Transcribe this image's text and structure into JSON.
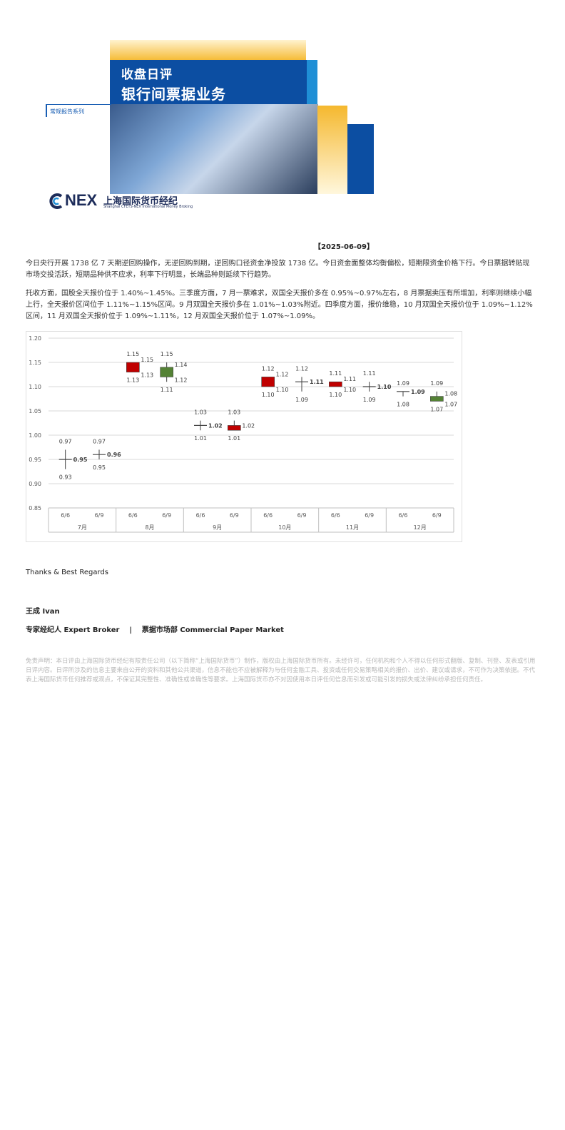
{
  "header": {
    "title_line1": "收盘日评",
    "title_line2": "银行间票据业务",
    "series_label": "常规报告系列",
    "logo_text": "NEX",
    "logo_cn": "上海国际货币经纪",
    "logo_en": "Shanghai CFETS-NEX International Money Broking",
    "colors": {
      "blue": "#0c4ea2",
      "yellow": "#f5b82e",
      "light_blue": "#1f8fd6"
    }
  },
  "report_date": "【2025-06-09】",
  "paragraphs": [
    "今日央行开展 1738 亿 7 天期逆回购操作，无逆回购到期，逆回购口径资金净投放 1738 亿。今日资金面整体均衡偏松，短期限资金价格下行。今日票据转贴现市场交投活跃，短期品种供不应求，利率下行明显，长端品种则延续下行趋势。",
    "托收方面，国股全天报价位于 1.40%~1.45%。三季度方面，7 月一票难求，双国全天报价多在 0.95%~0.97%左右，8 月票据卖压有所增加，利率则继续小幅上行，全天报价区间位于 1.11%~1.15%区间。9 月双国全天报价多在 1.01%~1.03%附近。四季度方面，报价维稳，10 月双国全天报价位于 1.09%~1.12%区间，11 月双国全天报价位于 1.09%~1.11%，12 月双国全天报价位于 1.07%~1.09%。"
  ],
  "chart_data": {
    "type": "candlestick",
    "ylim": [
      0.85,
      1.2
    ],
    "yticks": [
      "0.85",
      "0.90",
      "0.95",
      "1.00",
      "1.05",
      "1.10",
      "1.15",
      "1.20"
    ],
    "groups": [
      "7月",
      "8月",
      "9月",
      "10月",
      "11月",
      "12月"
    ],
    "categories": [
      "6/6",
      "6/9",
      "6/6",
      "6/9",
      "6/6",
      "6/9",
      "6/6",
      "6/9",
      "6/6",
      "6/9",
      "6/6",
      "6/9"
    ],
    "candles": [
      {
        "high": 0.97,
        "low": 0.93,
        "open": 0.95,
        "close": 0.95,
        "labels": [
          "0.97",
          "0.95",
          "0.93"
        ]
      },
      {
        "high": 0.97,
        "low": 0.95,
        "open": 0.96,
        "close": 0.96,
        "labels": [
          "0.97",
          "0.96",
          "0.95"
        ]
      },
      {
        "high": 1.15,
        "low": 1.13,
        "open": 1.13,
        "close": 1.15,
        "labels": [
          "1.15",
          "1.15",
          "1.13",
          "1.13"
        ]
      },
      {
        "high": 1.15,
        "low": 1.11,
        "open": 1.14,
        "close": 1.12,
        "labels": [
          "1.15",
          "1.14",
          "1.12",
          "1.11"
        ]
      },
      {
        "high": 1.03,
        "low": 1.01,
        "open": 1.02,
        "close": 1.02,
        "labels": [
          "1.03",
          "1.02",
          "1.01"
        ]
      },
      {
        "high": 1.03,
        "low": 1.01,
        "open": 1.01,
        "close": 1.02,
        "labels": [
          "1.03",
          "1.02",
          "1.01"
        ]
      },
      {
        "high": 1.12,
        "low": 1.1,
        "open": 1.1,
        "close": 1.12,
        "labels": [
          "1.12",
          "1.12",
          "1.10",
          "1.10"
        ]
      },
      {
        "high": 1.12,
        "low": 1.09,
        "open": 1.11,
        "close": 1.11,
        "labels": [
          "1.12",
          "1.11",
          "1.09"
        ]
      },
      {
        "high": 1.11,
        "low": 1.1,
        "open": 1.1,
        "close": 1.11,
        "labels": [
          "1.11",
          "1.11",
          "1.10",
          "1.10"
        ]
      },
      {
        "high": 1.11,
        "low": 1.09,
        "open": 1.1,
        "close": 1.1,
        "labels": [
          "1.11",
          "1.10",
          "1.09"
        ]
      },
      {
        "high": 1.09,
        "low": 1.08,
        "open": 1.09,
        "close": 1.09,
        "labels": [
          "1.09",
          "1.09",
          "1.08"
        ]
      },
      {
        "high": 1.09,
        "low": 1.07,
        "open": 1.08,
        "close": 1.07,
        "labels": [
          "1.09",
          "1.08",
          "1.07",
          "1.07"
        ]
      }
    ],
    "colors": {
      "up": "#c00000",
      "down": "#548235",
      "grid": "#d9d9d9",
      "axis_text": "#595959"
    }
  },
  "signature": {
    "closing": "Thanks & Best Regards",
    "name": "王成  Ivan",
    "title": "专家经纪人 Expert Broker    |    票据市场部 Commercial Paper Market"
  },
  "disclaimer": "免责声明：本日评由上海国际货币经纪有限责任公司（以下简称“上海国际货币”）制作，版权由上海国际货币所有。未经许可，任何机构和个人不得以任何形式翻版、复制、刊登、发表或引用日评内容。日评所涉及的信息主要来自公开的资料和其他公共渠道，信息不能也不应被解释为与任何金融工具、投资或任何交易策略相关的报价、出价、建议或请求，不可作为决策依据。不代表上海国际货币任何推荐或观点，不保证其完整性、准确性或准确性等要求。上海国际货币亦不对因使用本日评任何信息而引发或可能引发的损失或法律纠纷承担任何责任。"
}
